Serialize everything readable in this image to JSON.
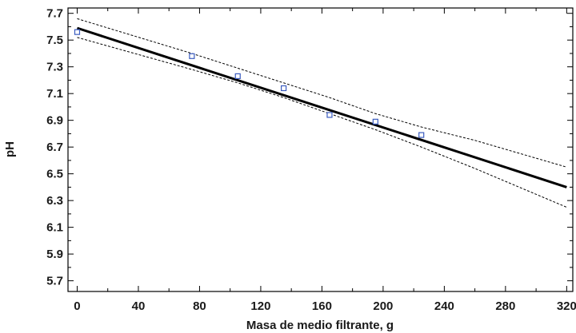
{
  "chart_data": {
    "type": "scatter",
    "title": "",
    "xlabel": "Masa de medio filtrante, g",
    "ylabel": "pH",
    "xlim": [
      -6,
      324
    ],
    "ylim": [
      5.62,
      7.74
    ],
    "x_ticks": [
      0,
      40,
      80,
      120,
      160,
      200,
      240,
      280,
      320
    ],
    "x_tick_labels": [
      "0",
      "40",
      "80",
      "120",
      "160",
      "200",
      "240",
      "280",
      "320"
    ],
    "y_ticks": [
      5.7,
      5.9,
      6.1,
      6.3,
      6.5,
      6.7,
      6.9,
      7.1,
      7.3,
      7.5,
      7.7
    ],
    "y_tick_labels": [
      "5.7",
      "5.9",
      "6.1",
      "6.3",
      "6.5",
      "6.7",
      "6.9",
      "7.1",
      "7.3",
      "7.5",
      "7.7"
    ],
    "grid": false,
    "points": {
      "x": [
        0,
        75,
        105,
        135,
        165,
        195,
        225
      ],
      "y": [
        7.56,
        7.38,
        7.23,
        7.14,
        6.94,
        6.89,
        6.79
      ]
    },
    "fit_line": {
      "x": [
        0,
        320
      ],
      "y": [
        7.59,
        6.4
      ]
    },
    "upper_band": {
      "x": [
        0,
        75,
        105,
        135,
        165,
        195,
        225,
        260,
        320
      ],
      "y": [
        7.66,
        7.4,
        7.29,
        7.18,
        7.07,
        6.95,
        6.85,
        6.75,
        6.55
      ]
    },
    "lower_band": {
      "x": [
        0,
        75,
        105,
        135,
        165,
        195,
        225,
        260,
        320
      ],
      "y": [
        7.52,
        7.28,
        7.18,
        7.07,
        6.95,
        6.83,
        6.7,
        6.54,
        6.25
      ]
    },
    "colors": {
      "points": "#3a5bbf",
      "fit_line": "#000000",
      "bands": "#000000",
      "axes": "#000000"
    }
  }
}
